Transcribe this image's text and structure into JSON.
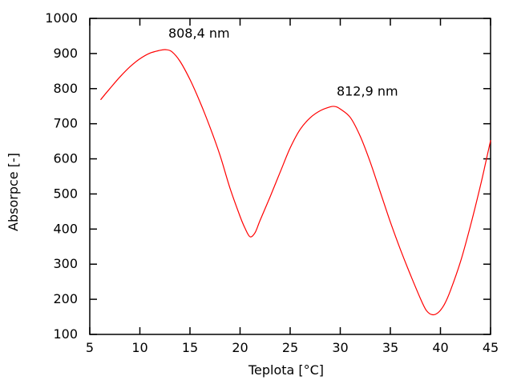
{
  "chart_data": {
    "type": "line",
    "title": "",
    "xlabel": "Teplota [°C]",
    "ylabel": "Absorpce [-]",
    "xlim": [
      5,
      45
    ],
    "ylim": [
      100,
      1000
    ],
    "xticks": [
      5,
      10,
      15,
      20,
      25,
      30,
      35,
      40,
      45
    ],
    "yticks": [
      100,
      200,
      300,
      400,
      500,
      600,
      700,
      800,
      900,
      1000
    ],
    "grid": false,
    "legend": false,
    "background_color": "#ffffff",
    "frame_color": "#000000",
    "series": [
      {
        "name": "absorpce-krivka",
        "color": "#ff0000",
        "points": [
          [
            6.1,
            769
          ],
          [
            7,
            800
          ],
          [
            8,
            833
          ],
          [
            9,
            862
          ],
          [
            10,
            885
          ],
          [
            11,
            901
          ],
          [
            12,
            909
          ],
          [
            12.6,
            911
          ],
          [
            13.2,
            905
          ],
          [
            14,
            878
          ],
          [
            15,
            826
          ],
          [
            16,
            762
          ],
          [
            17,
            690
          ],
          [
            18,
            610
          ],
          [
            19,
            516
          ],
          [
            20,
            436
          ],
          [
            20.5,
            402
          ],
          [
            21,
            378
          ],
          [
            21.5,
            390
          ],
          [
            22,
            425
          ],
          [
            23,
            492
          ],
          [
            24,
            562
          ],
          [
            25,
            631
          ],
          [
            26,
            684
          ],
          [
            27,
            717
          ],
          [
            28,
            737
          ],
          [
            29,
            748
          ],
          [
            29.5,
            749
          ],
          [
            30,
            742
          ],
          [
            31,
            718
          ],
          [
            32,
            664
          ],
          [
            33,
            590
          ],
          [
            34,
            505
          ],
          [
            35,
            420
          ],
          [
            36,
            342
          ],
          [
            37,
            270
          ],
          [
            38,
            202
          ],
          [
            38.6,
            168
          ],
          [
            39.2,
            156
          ],
          [
            39.8,
            163
          ],
          [
            40.4,
            186
          ],
          [
            41,
            225
          ],
          [
            42,
            307
          ],
          [
            43,
            410
          ],
          [
            44,
            525
          ],
          [
            44.5,
            588
          ],
          [
            45,
            652
          ]
        ]
      }
    ],
    "annotations": [
      {
        "text": "808,4 nm",
        "x": 15.9,
        "y": 957
      },
      {
        "text": "812,9 nm",
        "x": 32.7,
        "y": 791
      }
    ]
  }
}
